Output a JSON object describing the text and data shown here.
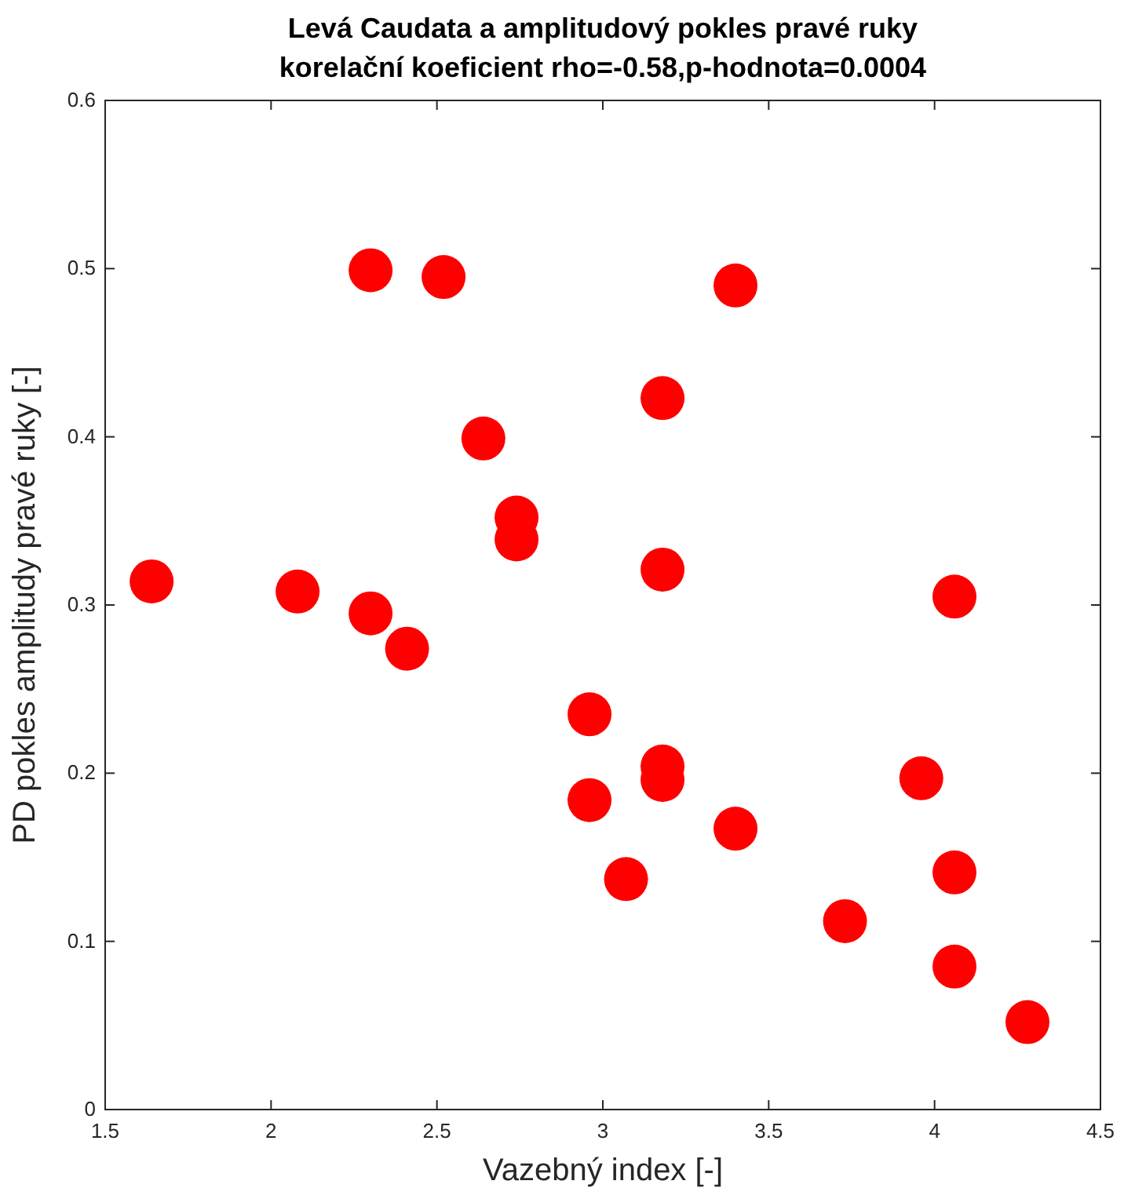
{
  "chart_data": {
    "type": "scatter",
    "title": "Levá Caudata a amplitudový pokles pravé ruky",
    "subtitle": "korelační koeficient rho=-0.58,p-hodnota=0.0004",
    "xlabel": "Vazebný index [-]",
    "ylabel": "PD pokles amplitudy pravé ruky [-]",
    "xlim": [
      1.5,
      4.5
    ],
    "xticks": [
      1.5,
      2,
      2.5,
      3,
      3.5,
      4,
      4.5
    ],
    "ylim": [
      0,
      0.6
    ],
    "yticks": [
      0,
      0.1,
      0.2,
      0.3,
      0.4,
      0.5,
      0.6
    ],
    "marker": "circle",
    "series": [
      {
        "color": "#ff0000",
        "x": [
          1.64,
          2.08,
          2.3,
          2.52,
          2.3,
          2.41,
          2.64,
          2.74,
          2.74,
          2.96,
          2.96,
          3.07,
          3.18,
          3.18,
          3.18,
          3.18,
          3.4,
          3.4,
          3.73,
          3.96,
          4.06,
          4.06,
          4.06,
          4.28
        ],
        "values": [
          0.314,
          0.308,
          0.499,
          0.495,
          0.295,
          0.274,
          0.399,
          0.352,
          0.339,
          0.235,
          0.184,
          0.137,
          0.423,
          0.321,
          0.204,
          0.196,
          0.49,
          0.167,
          0.112,
          0.197,
          0.305,
          0.141,
          0.085,
          0.052
        ]
      }
    ]
  }
}
